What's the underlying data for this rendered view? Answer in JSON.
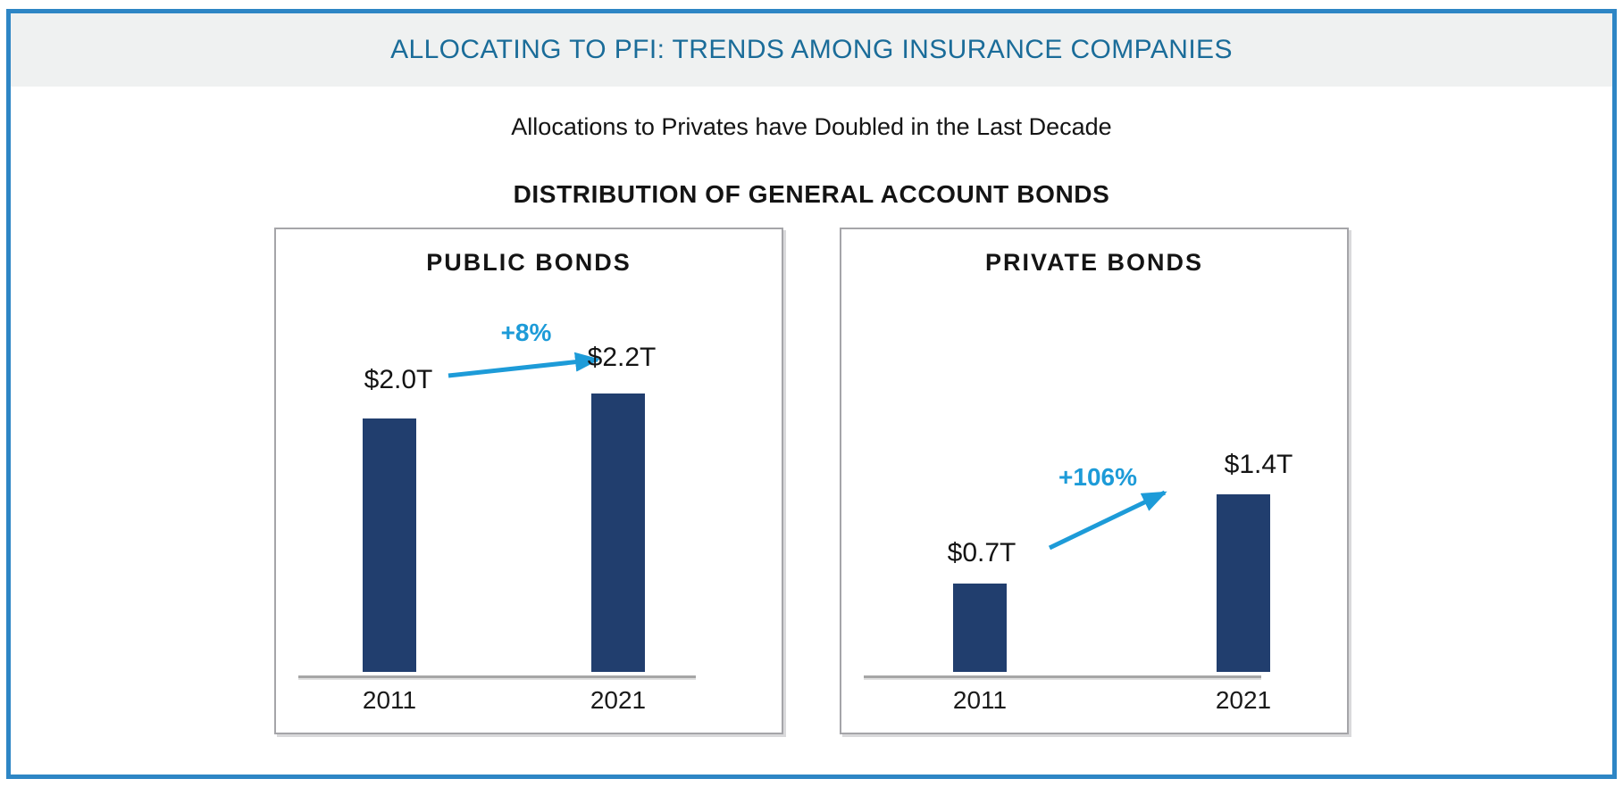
{
  "page": {
    "title": "ALLOCATING TO PFI: TRENDS AMONG INSURANCE COMPANIES",
    "subtitle": "Allocations to Privates have Doubled in the Last Decade",
    "section_heading": "DISTRIBUTION OF GENERAL ACCOUNT BONDS"
  },
  "colors": {
    "accent_blue": "#1d9bd8",
    "bar_navy": "#213e6e",
    "title_teal": "#1a6c99",
    "border_blue": "#2e86c5",
    "header_bg": "#eff1f1",
    "axis_gray": "#a6a6a6"
  },
  "chart_data": [
    {
      "type": "bar",
      "title": "PUBLIC BONDS",
      "categories": [
        "2011",
        "2021"
      ],
      "values": [
        2.0,
        2.2
      ],
      "value_labels": [
        "$2.0T",
        "$2.2T"
      ],
      "change_label": "+8%",
      "unit": "trillions USD",
      "ylim": [
        0,
        2.6
      ],
      "grid": false,
      "legend": false
    },
    {
      "type": "bar",
      "title": "PRIVATE BONDS",
      "categories": [
        "2011",
        "2021"
      ],
      "values": [
        0.7,
        1.4
      ],
      "value_labels": [
        "$0.7T",
        "$1.4T"
      ],
      "change_label": "+106%",
      "unit": "trillions USD",
      "ylim": [
        0,
        2.6
      ],
      "grid": false,
      "legend": false
    }
  ]
}
